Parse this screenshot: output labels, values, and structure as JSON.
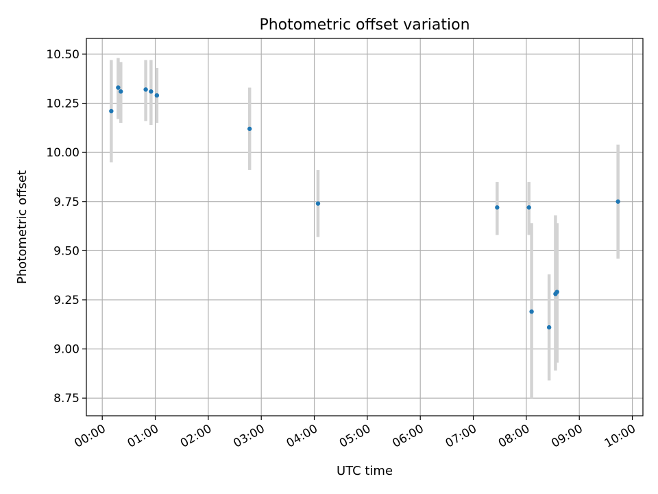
{
  "chart_data": {
    "type": "scatter",
    "title": "Photometric offset variation",
    "xlabel": "UTC time",
    "ylabel": "Photometric offset",
    "x_unit": "hours",
    "xlim": [
      -0.3,
      10.2
    ],
    "ylim": [
      8.66,
      10.58
    ],
    "grid": true,
    "legend": "none",
    "colors": {
      "point": "#1f77b4",
      "errorbar": "#d3d3d3",
      "grid": "#b0b0b0",
      "axes": "#000000"
    },
    "x_ticks": [
      {
        "value": 0,
        "label": "00:00"
      },
      {
        "value": 1,
        "label": "01:00"
      },
      {
        "value": 2,
        "label": "02:00"
      },
      {
        "value": 3,
        "label": "03:00"
      },
      {
        "value": 4,
        "label": "04:00"
      },
      {
        "value": 5,
        "label": "05:00"
      },
      {
        "value": 6,
        "label": "06:00"
      },
      {
        "value": 7,
        "label": "07:00"
      },
      {
        "value": 8,
        "label": "08:00"
      },
      {
        "value": 9,
        "label": "09:00"
      },
      {
        "value": 10,
        "label": "10:00"
      }
    ],
    "y_ticks": [
      {
        "value": 8.75,
        "label": "8.75"
      },
      {
        "value": 9.0,
        "label": "9.00"
      },
      {
        "value": 9.25,
        "label": "9.25"
      },
      {
        "value": 9.5,
        "label": "9.50"
      },
      {
        "value": 9.75,
        "label": "9.75"
      },
      {
        "value": 10.0,
        "label": "10.00"
      },
      {
        "value": 10.25,
        "label": "10.25"
      },
      {
        "value": 10.5,
        "label": "10.50"
      }
    ],
    "points": [
      {
        "x": 0.17,
        "y": 10.21,
        "lo": 9.95,
        "hi": 10.47
      },
      {
        "x": 0.3,
        "y": 10.33,
        "lo": 10.17,
        "hi": 10.48
      },
      {
        "x": 0.35,
        "y": 10.31,
        "lo": 10.15,
        "hi": 10.46
      },
      {
        "x": 0.82,
        "y": 10.32,
        "lo": 10.16,
        "hi": 10.47
      },
      {
        "x": 0.92,
        "y": 10.31,
        "lo": 10.14,
        "hi": 10.47
      },
      {
        "x": 1.03,
        "y": 10.29,
        "lo": 10.15,
        "hi": 10.43
      },
      {
        "x": 2.78,
        "y": 10.12,
        "lo": 9.91,
        "hi": 10.33
      },
      {
        "x": 4.07,
        "y": 9.74,
        "lo": 9.57,
        "hi": 9.91
      },
      {
        "x": 7.45,
        "y": 9.72,
        "lo": 9.58,
        "hi": 9.85
      },
      {
        "x": 8.05,
        "y": 9.72,
        "lo": 9.58,
        "hi": 9.85
      },
      {
        "x": 8.1,
        "y": 9.19,
        "lo": 8.75,
        "hi": 9.64
      },
      {
        "x": 8.43,
        "y": 9.11,
        "lo": 8.84,
        "hi": 9.38
      },
      {
        "x": 8.55,
        "y": 9.28,
        "lo": 8.89,
        "hi": 9.68
      },
      {
        "x": 8.58,
        "y": 9.29,
        "lo": 8.93,
        "hi": 9.64
      },
      {
        "x": 9.73,
        "y": 9.75,
        "lo": 9.46,
        "hi": 10.04
      }
    ]
  }
}
